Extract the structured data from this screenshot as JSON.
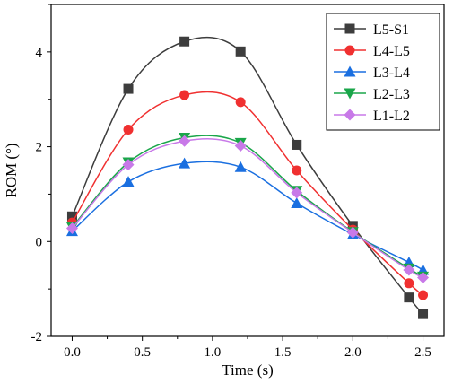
{
  "chart_data": {
    "type": "line",
    "title": "",
    "xlabel": "Time (s)",
    "ylabel": "ROM (°)",
    "xlim": [
      -0.15,
      2.65
    ],
    "ylim": [
      -2,
      5
    ],
    "xticks": [
      0.0,
      0.5,
      1.0,
      1.5,
      2.0,
      2.5
    ],
    "xtick_labels": [
      "0.0",
      "0.5",
      "1.0",
      "1.5",
      "2.0",
      "2.5"
    ],
    "yticks": [
      -2,
      0,
      2,
      4
    ],
    "ytick_labels": [
      "-2",
      "0",
      "2",
      "4"
    ],
    "grid": false,
    "legend_position": "top-right",
    "x": [
      0.0,
      0.4,
      0.8,
      1.2,
      1.6,
      2.0,
      2.4,
      2.5
    ],
    "series": [
      {
        "name": "L5-S1",
        "color": "#3d3d3d",
        "marker": "square",
        "values": [
          0.53,
          3.22,
          4.22,
          4.01,
          2.04,
          0.33,
          -1.18,
          -1.53
        ]
      },
      {
        "name": "L4-L5",
        "color": "#f03030",
        "marker": "circle",
        "values": [
          0.4,
          2.36,
          3.09,
          2.94,
          1.5,
          0.25,
          -0.88,
          -1.13
        ]
      },
      {
        "name": "L3-L4",
        "color": "#1a6fe0",
        "marker": "triangle-up",
        "values": [
          0.22,
          1.26,
          1.65,
          1.57,
          0.81,
          0.15,
          -0.44,
          -0.6
        ]
      },
      {
        "name": "L2-L3",
        "color": "#1aa64a",
        "marker": "triangle-down",
        "values": [
          0.3,
          1.67,
          2.19,
          2.08,
          1.07,
          0.2,
          -0.57,
          -0.74
        ]
      },
      {
        "name": "L1-L2",
        "color": "#c879e8",
        "marker": "diamond",
        "values": [
          0.28,
          1.62,
          2.12,
          2.02,
          1.03,
          0.19,
          -0.6,
          -0.76
        ]
      }
    ]
  }
}
